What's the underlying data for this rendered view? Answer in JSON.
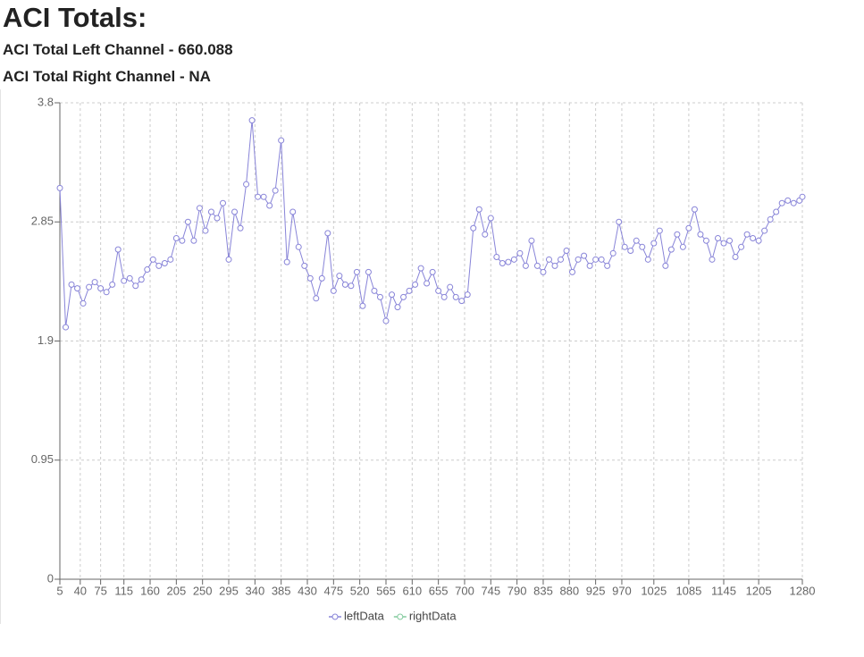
{
  "header": {
    "title": "ACI Totals:",
    "lines": [
      "ACI Total Left Channel - 660.088",
      "ACI Total Right Channel - NA"
    ]
  },
  "chart_data": {
    "type": "line",
    "x": [
      5,
      15,
      25,
      35,
      45,
      55,
      65,
      75,
      85,
      95,
      105,
      115,
      125,
      135,
      145,
      155,
      165,
      175,
      185,
      195,
      205,
      215,
      225,
      235,
      245,
      255,
      265,
      275,
      285,
      295,
      305,
      315,
      325,
      335,
      345,
      355,
      365,
      375,
      385,
      395,
      405,
      415,
      425,
      435,
      445,
      455,
      465,
      475,
      485,
      495,
      505,
      515,
      525,
      535,
      545,
      555,
      565,
      575,
      585,
      595,
      605,
      615,
      625,
      635,
      645,
      655,
      665,
      675,
      685,
      695,
      705,
      715,
      725,
      735,
      745,
      755,
      765,
      775,
      785,
      795,
      805,
      815,
      825,
      835,
      845,
      855,
      865,
      875,
      885,
      895,
      905,
      915,
      925,
      935,
      945,
      955,
      965,
      975,
      985,
      995,
      1005,
      1015,
      1025,
      1035,
      1045,
      1055,
      1065,
      1075,
      1085,
      1095,
      1105,
      1115,
      1125,
      1135,
      1145,
      1155,
      1165,
      1175,
      1185,
      1195,
      1205,
      1215,
      1225,
      1235,
      1245,
      1255,
      1265,
      1275,
      1280
    ],
    "series": [
      {
        "name": "leftData",
        "color": "#8884d8",
        "values": [
          3.12,
          2.01,
          2.35,
          2.32,
          2.2,
          2.33,
          2.37,
          2.32,
          2.29,
          2.35,
          2.63,
          2.38,
          2.4,
          2.34,
          2.39,
          2.47,
          2.55,
          2.5,
          2.52,
          2.55,
          2.72,
          2.7,
          2.85,
          2.7,
          2.96,
          2.78,
          2.93,
          2.88,
          3.0,
          2.55,
          2.93,
          2.8,
          3.15,
          3.66,
          3.05,
          3.05,
          2.98,
          3.1,
          3.5,
          2.53,
          2.93,
          2.65,
          2.5,
          2.4,
          2.24,
          2.4,
          2.76,
          2.3,
          2.42,
          2.35,
          2.34,
          2.45,
          2.18,
          2.45,
          2.3,
          2.25,
          2.06,
          2.27,
          2.17,
          2.25,
          2.3,
          2.35,
          2.48,
          2.36,
          2.45,
          2.3,
          2.25,
          2.33,
          2.25,
          2.22,
          2.27,
          2.8,
          2.95,
          2.75,
          2.88,
          2.57,
          2.52,
          2.53,
          2.55,
          2.6,
          2.5,
          2.7,
          2.5,
          2.45,
          2.55,
          2.5,
          2.55,
          2.62,
          2.45,
          2.55,
          2.58,
          2.5,
          2.55,
          2.55,
          2.5,
          2.6,
          2.85,
          2.65,
          2.62,
          2.7,
          2.65,
          2.55,
          2.68,
          2.78,
          2.5,
          2.63,
          2.75,
          2.65,
          2.8,
          2.95,
          2.75,
          2.7,
          2.55,
          2.72,
          2.68,
          2.7,
          2.57,
          2.65,
          2.75,
          2.72,
          2.7,
          2.78,
          2.87,
          2.93,
          3.0,
          3.02,
          3.0,
          3.02,
          3.05
        ]
      },
      {
        "name": "rightData",
        "color": "#82ca9d",
        "values": [
          null,
          null,
          null,
          null,
          null,
          null,
          null,
          null,
          null,
          null,
          null,
          null,
          null,
          null,
          null,
          null,
          null,
          null,
          null,
          null,
          null,
          null,
          null,
          null,
          null,
          null,
          null,
          null,
          null,
          null,
          null,
          null,
          null,
          null,
          null,
          null,
          null,
          null,
          null,
          null,
          null,
          null,
          null,
          null,
          null,
          null,
          null,
          null,
          null,
          null,
          null,
          null,
          null,
          null,
          null,
          null,
          null,
          null,
          null,
          null,
          null,
          null,
          null,
          null,
          null,
          null,
          null,
          null,
          null,
          null,
          null,
          null,
          null,
          null,
          null,
          null,
          null,
          null,
          null,
          null,
          null,
          null,
          null,
          null,
          null,
          null,
          null,
          null,
          null,
          null,
          null,
          null,
          null,
          null,
          null,
          null,
          null,
          null,
          null,
          null,
          null,
          null,
          null,
          null,
          null,
          null,
          null,
          null,
          null,
          null,
          null,
          null,
          null,
          null,
          null,
          null,
          null,
          null,
          null,
          null,
          null,
          null,
          null,
          null,
          null,
          null,
          null,
          null,
          null
        ]
      }
    ],
    "xlim": [
      5,
      1280
    ],
    "xticks": [
      5,
      40,
      75,
      115,
      160,
      205,
      250,
      295,
      340,
      385,
      430,
      475,
      520,
      565,
      610,
      655,
      700,
      745,
      790,
      835,
      880,
      925,
      970,
      1025,
      1085,
      1145,
      1205,
      1280
    ],
    "ylim": [
      0,
      3.8
    ],
    "yticks": [
      0,
      0.95,
      1.9,
      2.85,
      3.8
    ],
    "grid": true,
    "legend": "bottom"
  }
}
